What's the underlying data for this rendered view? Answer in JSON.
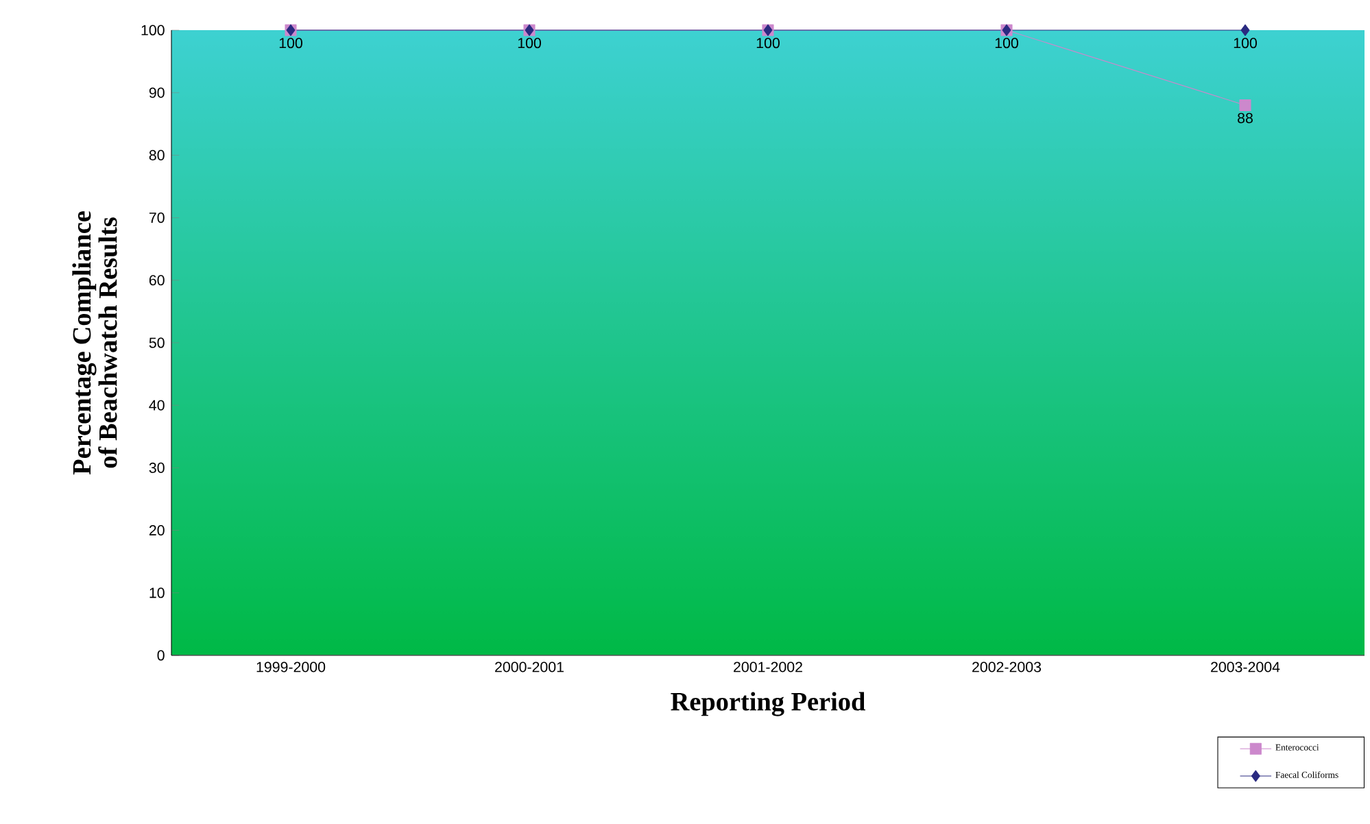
{
  "chart_data": {
    "type": "line",
    "xlabel": "Reporting Period",
    "ylabel": "Percentage Compliance of Beachwatch Results",
    "categories": [
      "1999-2000",
      "2000-2001",
      "2001-2002",
      "2002-2003",
      "2003-2004"
    ],
    "series": [
      {
        "name": "Enterococci",
        "color": "#cc88cc",
        "marker": "square",
        "values": [
          100,
          100,
          100,
          100,
          88
        ],
        "value_labels": [
          null,
          null,
          null,
          null,
          "88"
        ]
      },
      {
        "name": "Faecal Coliforms",
        "color": "#2a2a80",
        "marker": "diamond",
        "values": [
          100,
          100,
          100,
          100,
          100
        ],
        "value_labels": [
          "100",
          "100",
          "100",
          "100",
          "100"
        ]
      }
    ],
    "ylim": [
      0,
      100
    ],
    "yticks": [
      0,
      10,
      20,
      30,
      40,
      50,
      60,
      70,
      80,
      90,
      100
    ],
    "grid": false,
    "legend": "bottom right"
  }
}
